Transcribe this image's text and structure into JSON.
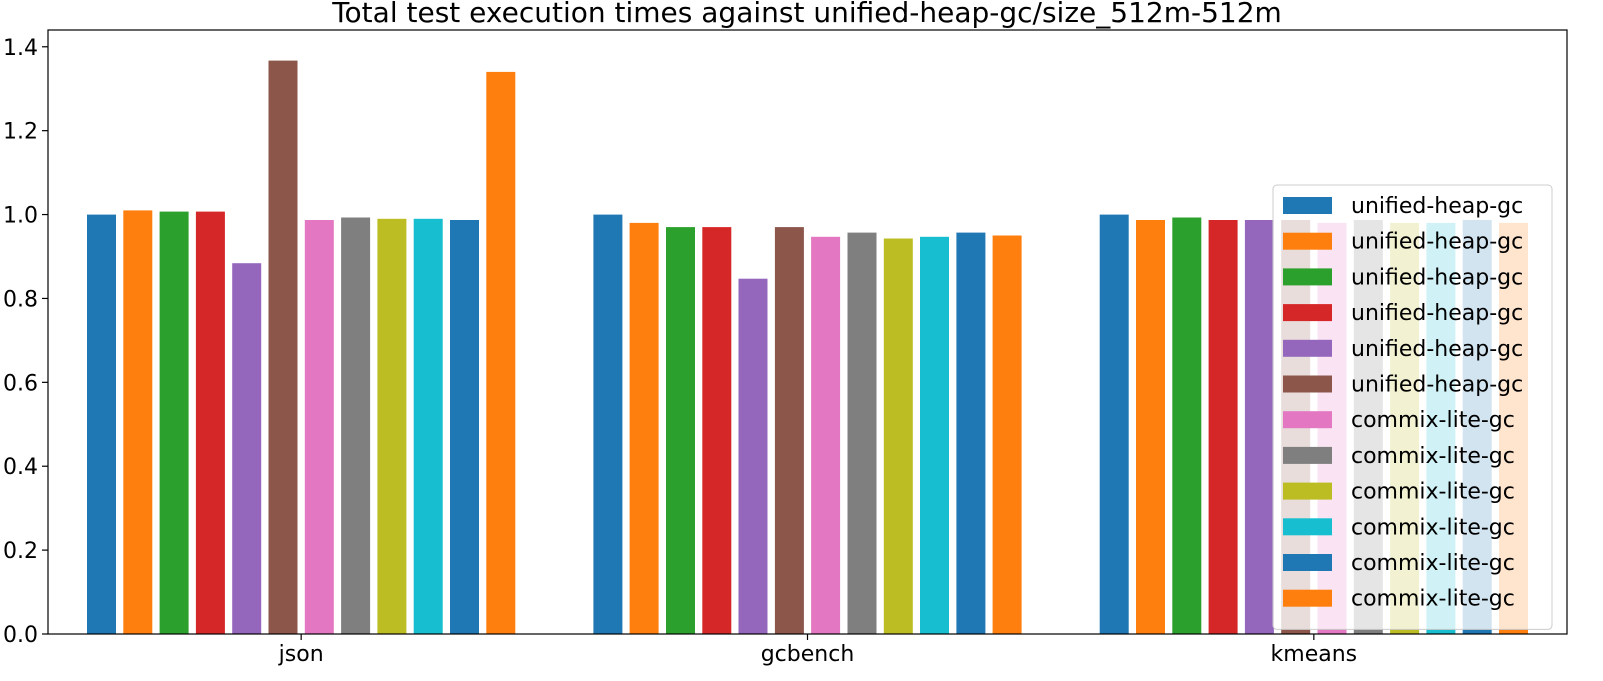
{
  "chart_data": {
    "type": "bar",
    "title": "Total test execution times against unified-heap-gc/size_512m-512m",
    "xlabel": "",
    "ylabel": "",
    "categories": [
      "json",
      "gcbench",
      "kmeans"
    ],
    "ylim": [
      0,
      1.44
    ],
    "yticks": [
      "0.0",
      "0.2",
      "0.4",
      "0.6",
      "0.8",
      "1.0",
      "1.2",
      "1.4"
    ],
    "grid": false,
    "legend_position": "right",
    "series": [
      {
        "name": "unified-heap-gc",
        "color": "#1f77b4",
        "values": [
          1.0,
          1.0,
          1.0
        ]
      },
      {
        "name": "unified-heap-gc",
        "color": "#ff7f0e",
        "values": [
          1.01,
          0.98,
          0.987
        ]
      },
      {
        "name": "unified-heap-gc",
        "color": "#2ca02c",
        "values": [
          1.007,
          0.97,
          0.993
        ]
      },
      {
        "name": "unified-heap-gc",
        "color": "#d62728",
        "values": [
          1.007,
          0.97,
          0.987
        ]
      },
      {
        "name": "unified-heap-gc",
        "color": "#9467bd",
        "values": [
          0.884,
          0.847,
          0.987
        ]
      },
      {
        "name": "unified-heap-gc",
        "color": "#8c564b",
        "values": [
          1.367,
          0.97,
          0.987
        ]
      },
      {
        "name": "commix-lite-gc",
        "color": "#e377c2",
        "values": [
          0.987,
          0.947,
          0.98
        ]
      },
      {
        "name": "commix-lite-gc",
        "color": "#7f7f7f",
        "values": [
          0.993,
          0.957,
          0.987
        ]
      },
      {
        "name": "commix-lite-gc",
        "color": "#bcbd22",
        "values": [
          0.99,
          0.943,
          0.98
        ]
      },
      {
        "name": "commix-lite-gc",
        "color": "#17becf",
        "values": [
          0.99,
          0.947,
          0.98
        ]
      },
      {
        "name": "commix-lite-gc",
        "color": "#1f77b4",
        "values": [
          0.987,
          0.957,
          0.987
        ]
      },
      {
        "name": "commix-lite-gc",
        "color": "#ff7f0e",
        "values": [
          1.34,
          0.95,
          0.98
        ]
      }
    ]
  }
}
